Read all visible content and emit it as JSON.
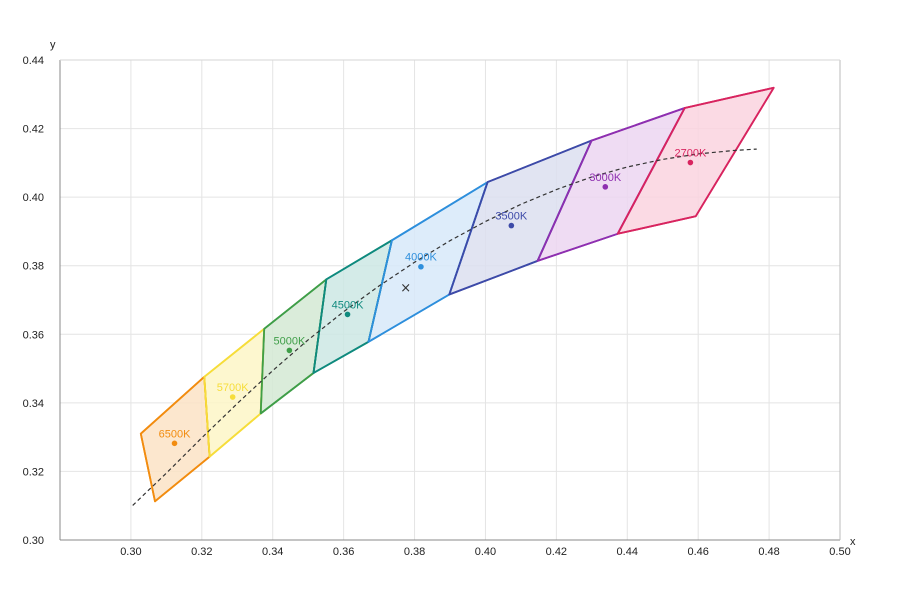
{
  "chart_data": {
    "type": "area",
    "title": "",
    "xlabel": "x",
    "ylabel": "y",
    "xlim": [
      0.28,
      0.5
    ],
    "ylim": [
      0.3,
      0.44
    ],
    "grid": true,
    "legend": "none",
    "x_ticks": [
      "0.30",
      "0.32",
      "0.34",
      "0.36",
      "0.38",
      "0.40",
      "0.42",
      "0.44",
      "0.46",
      "0.48",
      "0.50"
    ],
    "y_ticks": [
      "0.30",
      "0.32",
      "0.34",
      "0.36",
      "0.38",
      "0.40",
      "0.42",
      "0.44"
    ],
    "quadrangles": [
      {
        "label": "6500K",
        "color": "#f28c0f",
        "fill": "#fbe3c5",
        "corners": [
          [
            0.3028,
            0.331
          ],
          [
            0.3207,
            0.3476
          ],
          [
            0.3222,
            0.3243
          ],
          [
            0.3068,
            0.3113
          ]
        ],
        "center": [
          0.3123,
          0.3282
        ]
      },
      {
        "label": "5700K",
        "color": "#f6dd3a",
        "fill": "#fdf6c7",
        "corners": [
          [
            0.3207,
            0.3476
          ],
          [
            0.3376,
            0.3616
          ],
          [
            0.3366,
            0.3369
          ],
          [
            0.3222,
            0.3243
          ]
        ],
        "center": [
          0.3287,
          0.3417
        ]
      },
      {
        "label": "5000K",
        "color": "#3f9e48",
        "fill": "#d4e9d3",
        "corners": [
          [
            0.3376,
            0.3616
          ],
          [
            0.3551,
            0.376
          ],
          [
            0.3515,
            0.3487
          ],
          [
            0.3366,
            0.3369
          ]
        ],
        "center": [
          0.3447,
          0.3553
        ]
      },
      {
        "label": "4500K",
        "color": "#0f8a7e",
        "fill": "#cde8e4",
        "corners": [
          [
            0.3551,
            0.376
          ],
          [
            0.3736,
            0.3874
          ],
          [
            0.367,
            0.3578
          ],
          [
            0.3515,
            0.3487
          ]
        ],
        "center": [
          0.3611,
          0.3658
        ]
      },
      {
        "label": "4000K",
        "color": "#2e8fdc",
        "fill": "#d7e9f9",
        "corners": [
          [
            0.3736,
            0.3874
          ],
          [
            0.4006,
            0.4044
          ],
          [
            0.3898,
            0.3716
          ],
          [
            0.367,
            0.3578
          ]
        ],
        "center": [
          0.3818,
          0.3797
        ]
      },
      {
        "label": "3500K",
        "color": "#3d4aa8",
        "fill": "#dcdff0",
        "corners": [
          [
            0.4006,
            0.4044
          ],
          [
            0.4299,
            0.4165
          ],
          [
            0.4147,
            0.3814
          ],
          [
            0.3898,
            0.3716
          ]
        ],
        "center": [
          0.4073,
          0.3917
        ]
      },
      {
        "label": "3000K",
        "color": "#8e2fb0",
        "fill": "#ecd6f1",
        "corners": [
          [
            0.4299,
            0.4165
          ],
          [
            0.4562,
            0.426
          ],
          [
            0.4373,
            0.3893
          ],
          [
            0.4147,
            0.3814
          ]
        ],
        "center": [
          0.4338,
          0.403
        ]
      },
      {
        "label": "2700K",
        "color": "#d8245f",
        "fill": "#fad3df",
        "corners": [
          [
            0.4562,
            0.426
          ],
          [
            0.4813,
            0.4319
          ],
          [
            0.4593,
            0.3944
          ],
          [
            0.4373,
            0.3893
          ]
        ],
        "center": [
          0.4578,
          0.4101
        ]
      }
    ],
    "locus": {
      "style": "dashed",
      "color": "#333333",
      "points": [
        [
          0.3005,
          0.3101
        ],
        [
          0.31,
          0.3195
        ],
        [
          0.32,
          0.3298
        ],
        [
          0.33,
          0.3398
        ],
        [
          0.34,
          0.3494
        ],
        [
          0.35,
          0.3584
        ],
        [
          0.36,
          0.3666
        ],
        [
          0.37,
          0.3741
        ],
        [
          0.38,
          0.381
        ],
        [
          0.39,
          0.3873
        ],
        [
          0.4,
          0.3929
        ],
        [
          0.41,
          0.3979
        ],
        [
          0.42,
          0.4022
        ],
        [
          0.43,
          0.4059
        ],
        [
          0.44,
          0.4088
        ],
        [
          0.45,
          0.411
        ],
        [
          0.46,
          0.4126
        ],
        [
          0.47,
          0.4136
        ],
        [
          0.4765,
          0.414
        ]
      ]
    },
    "marker": {
      "symbol": "×",
      "x": 0.3775,
      "y": 0.3735,
      "color": "#333333"
    }
  }
}
